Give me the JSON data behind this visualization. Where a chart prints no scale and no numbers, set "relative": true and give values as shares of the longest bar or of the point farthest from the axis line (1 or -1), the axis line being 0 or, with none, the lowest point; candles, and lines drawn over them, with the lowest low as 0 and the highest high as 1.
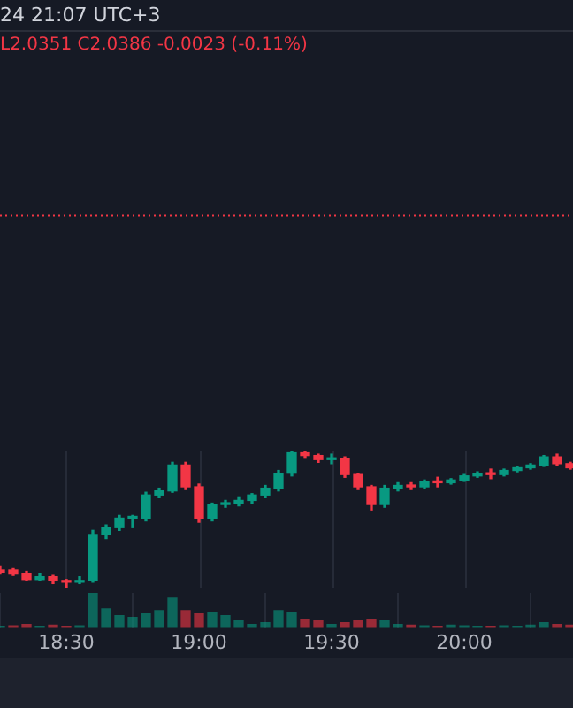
{
  "chart_data": [
    {
      "type": "candlestick",
      "relative": true,
      "annotations": [
        "24 21:07 UTC+3",
        "L2.0351 C2.0386 -0.0023 (-0.11%)"
      ],
      "x": [
        18.25,
        18.3,
        18.35,
        18.4,
        18.45,
        18.5,
        18.55,
        18.6,
        18.65,
        18.7,
        18.75,
        18.8,
        18.85,
        18.9,
        18.95,
        19.0,
        19.05,
        19.1,
        19.15,
        19.2,
        19.25,
        19.3,
        19.35,
        19.4,
        19.45,
        19.5,
        19.55,
        19.6,
        19.65,
        19.7,
        19.75,
        19.8,
        19.85,
        19.9,
        19.95,
        20.0,
        20.05,
        20.1,
        20.15,
        20.2,
        20.25,
        20.3,
        20.35,
        20.4
      ],
      "xlim": [
        18.25,
        20.41
      ],
      "xticks": [
        {
          "value": 18.5,
          "label": null
        },
        {
          "value": 19,
          "label": null
        },
        {
          "value": 19.5,
          "label": null
        },
        {
          "value": 20,
          "label": null
        }
      ],
      "ohlc": [
        [
          0.13,
          0.16,
          0.1,
          0.11
        ],
        [
          0.13,
          0.14,
          0.09,
          0.1
        ],
        [
          0.1,
          0.12,
          0.05,
          0.06
        ],
        [
          0.06,
          0.1,
          0.05,
          0.08
        ],
        [
          0.08,
          0.09,
          0.03,
          0.05
        ],
        [
          0.05,
          0.06,
          0,
          0.04
        ],
        [
          0.04,
          0.08,
          0.03,
          0.05
        ],
        [
          0.05,
          0.42,
          0.04,
          0.39
        ],
        [
          0.39,
          0.46,
          0.36,
          0.44
        ],
        [
          0.44,
          0.53,
          0.42,
          0.51
        ],
        [
          0.51,
          0.53,
          0.44,
          0.51
        ],
        [
          0.51,
          0.7,
          0.49,
          0.68
        ],
        [
          0.68,
          0.73,
          0.66,
          0.71
        ],
        [
          0.71,
          0.92,
          0.7,
          0.9
        ],
        [
          0.9,
          0.92,
          0.72,
          0.74
        ],
        [
          0.74,
          0.76,
          0.48,
          0.51
        ],
        [
          0.51,
          0.62,
          0.49,
          0.61
        ],
        [
          0.61,
          0.64,
          0.59,
          0.62
        ],
        [
          0.62,
          0.66,
          0.6,
          0.64
        ],
        [
          0.64,
          0.69,
          0.62,
          0.68
        ],
        [
          0.68,
          0.75,
          0.66,
          0.73
        ],
        [
          0.73,
          0.86,
          0.71,
          0.84
        ],
        [
          0.84,
          1,
          0.82,
          0.99
        ],
        [
          0.99,
          1,
          0.95,
          0.97
        ],
        [
          0.97,
          0.98,
          0.92,
          0.94
        ],
        [
          0.94,
          0.98,
          0.91,
          0.95
        ],
        [
          0.95,
          0.96,
          0.81,
          0.83
        ],
        [
          0.83,
          0.84,
          0.72,
          0.74
        ],
        [
          0.74,
          0.75,
          0.57,
          0.61
        ],
        [
          0.61,
          0.75,
          0.59,
          0.73
        ],
        [
          0.73,
          0.77,
          0.71,
          0.75
        ],
        [
          0.75,
          0.77,
          0.72,
          0.74
        ],
        [
          0.74,
          0.79,
          0.73,
          0.78
        ],
        [
          0.78,
          0.81,
          0.74,
          0.77
        ],
        [
          0.77,
          0.8,
          0.76,
          0.79
        ],
        [
          0.79,
          0.83,
          0.78,
          0.82
        ],
        [
          0.82,
          0.85,
          0.81,
          0.84
        ],
        [
          0.84,
          0.87,
          0.8,
          0.83
        ],
        [
          0.83,
          0.87,
          0.82,
          0.86
        ],
        [
          0.86,
          0.89,
          0.85,
          0.88
        ],
        [
          0.88,
          0.91,
          0.87,
          0.9
        ],
        [
          0.9,
          0.97,
          0.89,
          0.96
        ],
        [
          0.96,
          0.98,
          0.9,
          0.91
        ],
        [
          0.91,
          0.92,
          0.87,
          0.88
        ]
      ],
      "colors": [
        "#f23645",
        "#f23645",
        "#f23645",
        "#089981",
        "#f23645",
        "#f23645",
        "#089981",
        "#089981",
        "#089981",
        "#089981",
        "#089981",
        "#089981",
        "#089981",
        "#089981",
        "#f23645",
        "#f23645",
        "#089981",
        "#089981",
        "#089981",
        "#089981",
        "#089981",
        "#089981",
        "#089981",
        "#f23645",
        "#f23645",
        "#089981",
        "#f23645",
        "#f23645",
        "#f23645",
        "#089981",
        "#089981",
        "#f23645",
        "#089981",
        "#f23645",
        "#089981",
        "#089981",
        "#089981",
        "#f23645",
        "#089981",
        "#089981",
        "#089981",
        "#089981",
        "#f23645",
        "#f23645"
      ],
      "ref_lines": [
        {
          "axis": "y",
          "value": 2.73,
          "color": "#f23645",
          "line_style": "dotted"
        }
      ],
      "grid": "x",
      "tick_labels": false
    },
    {
      "type": "bar",
      "relative": true,
      "x": [
        18.25,
        18.3,
        18.35,
        18.4,
        18.45,
        18.5,
        18.55,
        18.6,
        18.65,
        18.7,
        18.75,
        18.8,
        18.85,
        18.9,
        18.95,
        19.0,
        19.05,
        19.1,
        19.15,
        19.2,
        19.25,
        19.3,
        19.35,
        19.4,
        19.45,
        19.5,
        19.55,
        19.6,
        19.65,
        19.7,
        19.75,
        19.8,
        19.85,
        19.9,
        19.95,
        20.0,
        20.05,
        20.1,
        20.15,
        20.2,
        20.25,
        20.3,
        20.35,
        20.4
      ],
      "xlim": [
        18.25,
        20.41
      ],
      "xticks": [
        {
          "value": 18.5,
          "label": "18:30"
        },
        {
          "value": 19,
          "label": "19:00"
        },
        {
          "value": 19.5,
          "label": "19:30"
        },
        {
          "value": 20,
          "label": "20:00"
        }
      ],
      "values": [
        0.05,
        0.06,
        0.1,
        0.05,
        0.08,
        0.05,
        0.06,
        1,
        0.55,
        0.35,
        0.3,
        0.4,
        0.5,
        0.85,
        0.5,
        0.4,
        0.45,
        0.35,
        0.2,
        0.1,
        0.15,
        0.5,
        0.45,
        0.25,
        0.2,
        0.1,
        0.15,
        0.2,
        0.25,
        0.2,
        0.1,
        0.08,
        0.06,
        0.05,
        0.08,
        0.06,
        0.05,
        0.05,
        0.06,
        0.05,
        0.08,
        0.15,
        0.1,
        0.08
      ],
      "colors": [
        "#08998199",
        "#f2364599",
        "#f2364599",
        "#08998199",
        "#f2364599",
        "#f2364599",
        "#08998199",
        "#08998199",
        "#08998199",
        "#08998199",
        "#08998199",
        "#08998199",
        "#08998199",
        "#08998199",
        "#f2364599",
        "#f2364599",
        "#08998199",
        "#08998199",
        "#08998199",
        "#08998199",
        "#08998199",
        "#08998199",
        "#08998199",
        "#f2364599",
        "#f2364599",
        "#08998199",
        "#f2364599",
        "#f2364599",
        "#f2364599",
        "#08998199",
        "#08998199",
        "#f2364599",
        "#08998199",
        "#f2364599",
        "#08998199",
        "#08998199",
        "#08998199",
        "#f2364599",
        "#08998199",
        "#08998199",
        "#08998199",
        "#08998199",
        "#f2364599",
        "#f2364599"
      ],
      "grid": "x",
      "tick_labels": "x"
    }
  ]
}
